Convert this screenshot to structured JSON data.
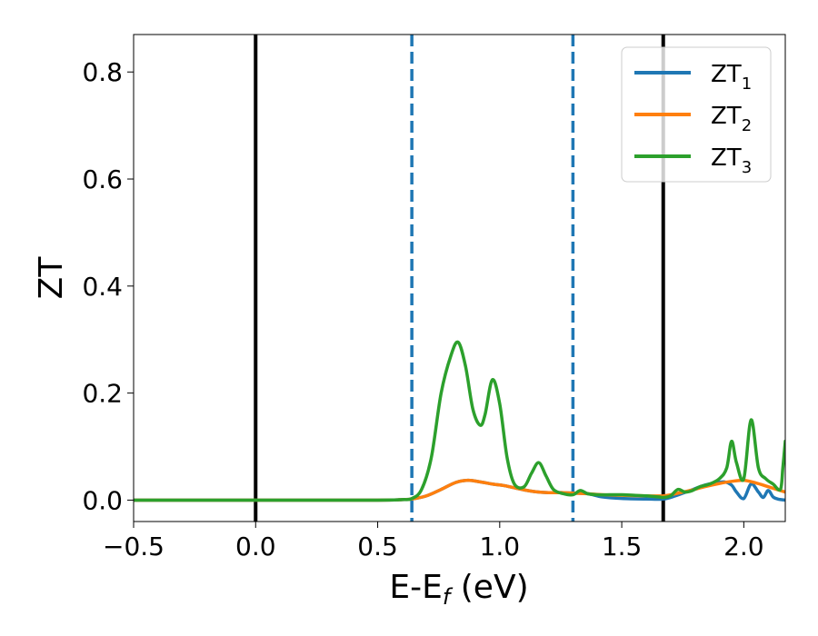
{
  "chart_data": {
    "type": "line",
    "title": "",
    "xlabel_main": "E-E",
    "xlabel_sub": "f",
    "xlabel_unit": " (eV)",
    "ylabel": "ZT",
    "xlim": [
      -0.5,
      2.17
    ],
    "ylim": [
      -0.04,
      0.87
    ],
    "xticks": [
      -0.5,
      0.0,
      0.5,
      1.0,
      1.5,
      2.0
    ],
    "xtick_labels": [
      "−0.5",
      "0.0",
      "0.5",
      "1.0",
      "1.5",
      "2.0"
    ],
    "yticks": [
      0.0,
      0.2,
      0.4,
      0.6,
      0.8
    ],
    "ytick_labels": [
      "0.0",
      "0.2",
      "0.4",
      "0.6",
      "0.8"
    ],
    "legend_position": "top-right",
    "vlines": [
      {
        "x": 0.0,
        "style": "solid",
        "color": "#000000"
      },
      {
        "x": 1.67,
        "style": "solid",
        "color": "#000000"
      },
      {
        "x": 0.64,
        "style": "dashed",
        "color": "#1f77b4"
      },
      {
        "x": 1.3,
        "style": "dashed",
        "color": "#1f77b4"
      }
    ],
    "series": [
      {
        "name": "ZT",
        "sub": "1",
        "color": "#1f77b4",
        "x": [
          -0.5,
          0.0,
          0.5,
          0.6,
          0.64,
          0.7,
          0.76,
          0.82,
          0.87,
          0.92,
          0.97,
          1.02,
          1.08,
          1.14,
          1.2,
          1.26,
          1.3,
          1.36,
          1.42,
          1.5,
          1.6,
          1.67,
          1.72,
          1.78,
          1.84,
          1.88,
          1.92,
          1.95,
          1.97,
          2.0,
          2.03,
          2.06,
          2.08,
          2.1,
          2.12,
          2.14,
          2.17
        ],
        "y": [
          0.0,
          0.0,
          0.0,
          0.001,
          0.002,
          0.008,
          0.02,
          0.033,
          0.037,
          0.034,
          0.03,
          0.027,
          0.021,
          0.016,
          0.014,
          0.014,
          0.013,
          0.012,
          0.006,
          0.003,
          0.002,
          0.002,
          0.008,
          0.018,
          0.028,
          0.032,
          0.034,
          0.028,
          0.015,
          0.003,
          0.03,
          0.015,
          0.005,
          0.018,
          0.006,
          0.002,
          0.0
        ]
      },
      {
        "name": "ZT",
        "sub": "2",
        "color": "#ff7f0e",
        "x": [
          -0.5,
          0.0,
          0.5,
          0.6,
          0.64,
          0.7,
          0.76,
          0.82,
          0.87,
          0.92,
          0.97,
          1.02,
          1.08,
          1.14,
          1.2,
          1.26,
          1.3,
          1.36,
          1.42,
          1.5,
          1.6,
          1.67,
          1.72,
          1.78,
          1.84,
          1.9,
          1.95,
          2.0,
          2.05,
          2.1,
          2.17
        ],
        "y": [
          0.0,
          0.0,
          0.0,
          0.001,
          0.002,
          0.008,
          0.02,
          0.033,
          0.037,
          0.034,
          0.03,
          0.027,
          0.021,
          0.016,
          0.014,
          0.014,
          0.013,
          0.012,
          0.01,
          0.009,
          0.008,
          0.008,
          0.012,
          0.018,
          0.025,
          0.031,
          0.035,
          0.037,
          0.032,
          0.025,
          0.015
        ]
      },
      {
        "name": "ZT",
        "sub": "3",
        "color": "#2ca02c",
        "x": [
          -0.5,
          0.0,
          0.5,
          0.6,
          0.64,
          0.68,
          0.72,
          0.76,
          0.8,
          0.83,
          0.86,
          0.89,
          0.92,
          0.94,
          0.97,
          1.0,
          1.03,
          1.06,
          1.1,
          1.13,
          1.16,
          1.19,
          1.22,
          1.26,
          1.3,
          1.33,
          1.36,
          1.4,
          1.45,
          1.5,
          1.55,
          1.6,
          1.65,
          1.67,
          1.7,
          1.73,
          1.76,
          1.79,
          1.82,
          1.86,
          1.9,
          1.93,
          1.95,
          1.97,
          2.0,
          2.03,
          2.06,
          2.09,
          2.12,
          2.15,
          2.16,
          2.17
        ],
        "y": [
          0.0,
          0.0,
          0.0,
          0.001,
          0.003,
          0.02,
          0.08,
          0.2,
          0.27,
          0.295,
          0.25,
          0.17,
          0.14,
          0.16,
          0.225,
          0.18,
          0.08,
          0.03,
          0.025,
          0.05,
          0.07,
          0.045,
          0.02,
          0.012,
          0.01,
          0.018,
          0.012,
          0.01,
          0.01,
          0.01,
          0.009,
          0.008,
          0.006,
          0.005,
          0.008,
          0.02,
          0.015,
          0.018,
          0.025,
          0.03,
          0.04,
          0.06,
          0.11,
          0.07,
          0.04,
          0.15,
          0.06,
          0.04,
          0.03,
          0.02,
          0.06,
          0.11
        ]
      }
    ]
  }
}
